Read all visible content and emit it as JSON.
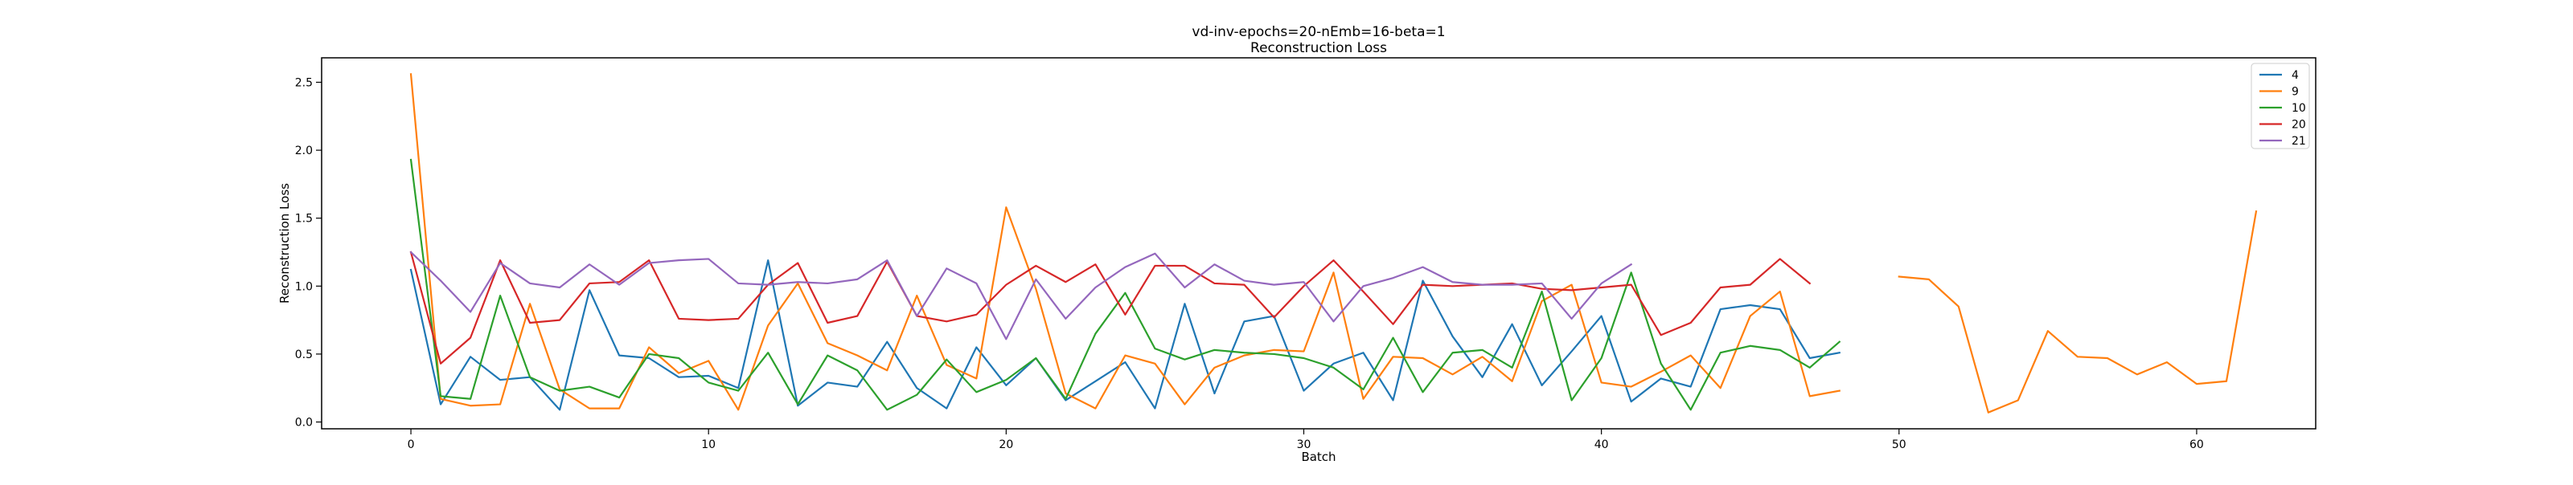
{
  "chart_data": {
    "type": "line",
    "title": "vd-inv-epochs=20-nEmb=16-beta=1",
    "subtitle": "Reconstruction Loss",
    "xlabel": "Batch",
    "ylabel": "Reconstruction Loss",
    "xlim": [
      -3,
      64
    ],
    "ylim": [
      -0.05,
      2.68
    ],
    "xticks": [
      "0",
      "10",
      "20",
      "30",
      "40",
      "50",
      "60"
    ],
    "yticks": [
      "0.0",
      "0.5",
      "1.0",
      "1.5",
      "2.0",
      "2.5"
    ],
    "grid": false,
    "legend_position": "upper-right",
    "series": [
      {
        "name": "4",
        "color": "#1f77b4",
        "values": [
          1.12,
          0.13,
          0.48,
          0.31,
          0.33,
          0.09,
          0.97,
          0.49,
          0.47,
          0.33,
          0.34,
          0.25,
          1.19,
          0.12,
          0.29,
          0.26,
          0.59,
          0.25,
          0.1,
          0.55,
          0.27,
          0.47,
          0.16,
          0.3,
          0.44,
          0.1,
          0.87,
          0.21,
          0.74,
          0.78,
          0.23,
          0.43,
          0.51,
          0.16,
          1.04,
          0.63,
          0.33,
          0.72,
          0.27,
          0.52,
          0.78,
          0.15,
          0.32,
          0.26,
          0.83,
          0.86,
          0.83,
          0.47,
          0.51
        ]
      },
      {
        "name": "9",
        "color": "#ff7f0e",
        "values": [
          2.56,
          0.17,
          0.12,
          0.13,
          0.87,
          0.24,
          0.1,
          0.1,
          0.55,
          0.36,
          0.45,
          0.09,
          0.71,
          1.02,
          0.58,
          0.49,
          0.38,
          0.93,
          0.42,
          0.32,
          1.58,
          0.98,
          0.21,
          0.1,
          0.49,
          0.43,
          0.13,
          0.4,
          0.49,
          0.53,
          0.52,
          1.1,
          0.17,
          0.48,
          0.47,
          0.35,
          0.48,
          0.3,
          0.89,
          1.01,
          0.29,
          0.26,
          0.37,
          0.49,
          0.25,
          0.78,
          0.96,
          0.19,
          0.23,
          null,
          1.07,
          1.05,
          0.85,
          0.07,
          0.16,
          0.67,
          0.48,
          0.47,
          0.35,
          0.44,
          0.28,
          0.3,
          1.55
        ]
      },
      {
        "name": "10",
        "color": "#2ca02c",
        "values": [
          1.93,
          0.19,
          0.17,
          0.93,
          0.33,
          0.23,
          0.26,
          0.18,
          0.5,
          0.47,
          0.29,
          0.23,
          0.51,
          0.13,
          0.49,
          0.38,
          0.09,
          0.2,
          0.46,
          0.22,
          0.31,
          0.47,
          0.17,
          0.65,
          0.95,
          0.54,
          0.46,
          0.53,
          0.51,
          0.5,
          0.47,
          0.4,
          0.24,
          0.62,
          0.22,
          0.51,
          0.53,
          0.4,
          0.96,
          0.16,
          0.47,
          1.1,
          0.43,
          0.09,
          0.51,
          0.56,
          0.53,
          0.4,
          0.59
        ]
      },
      {
        "name": "20",
        "color": "#d62728",
        "values": [
          1.25,
          0.43,
          0.62,
          1.19,
          0.73,
          0.75,
          1.02,
          1.03,
          1.19,
          0.76,
          0.75,
          0.76,
          1.01,
          1.17,
          0.73,
          0.78,
          1.18,
          0.78,
          0.74,
          0.79,
          1.01,
          1.15,
          1.03,
          1.16,
          0.79,
          1.15,
          1.15,
          1.02,
          1.01,
          0.77,
          1.0,
          1.19,
          0.96,
          0.72,
          1.01,
          1.0,
          1.01,
          1.02,
          0.98,
          0.97,
          0.99,
          1.01,
          0.64,
          0.73,
          0.99,
          1.01,
          1.2,
          1.02
        ]
      },
      {
        "name": "21",
        "color": "#9467bd",
        "values": [
          1.25,
          1.04,
          0.81,
          1.17,
          1.02,
          0.99,
          1.16,
          1.01,
          1.17,
          1.19,
          1.2,
          1.02,
          1.01,
          1.03,
          1.02,
          1.05,
          1.19,
          0.78,
          1.13,
          1.02,
          0.61,
          1.05,
          0.76,
          0.99,
          1.14,
          1.24,
          0.99,
          1.16,
          1.04,
          1.01,
          1.03,
          0.74,
          1.0,
          1.06,
          1.14,
          1.03,
          1.01,
          1.01,
          1.02,
          0.76,
          1.02,
          1.16
        ]
      }
    ]
  }
}
